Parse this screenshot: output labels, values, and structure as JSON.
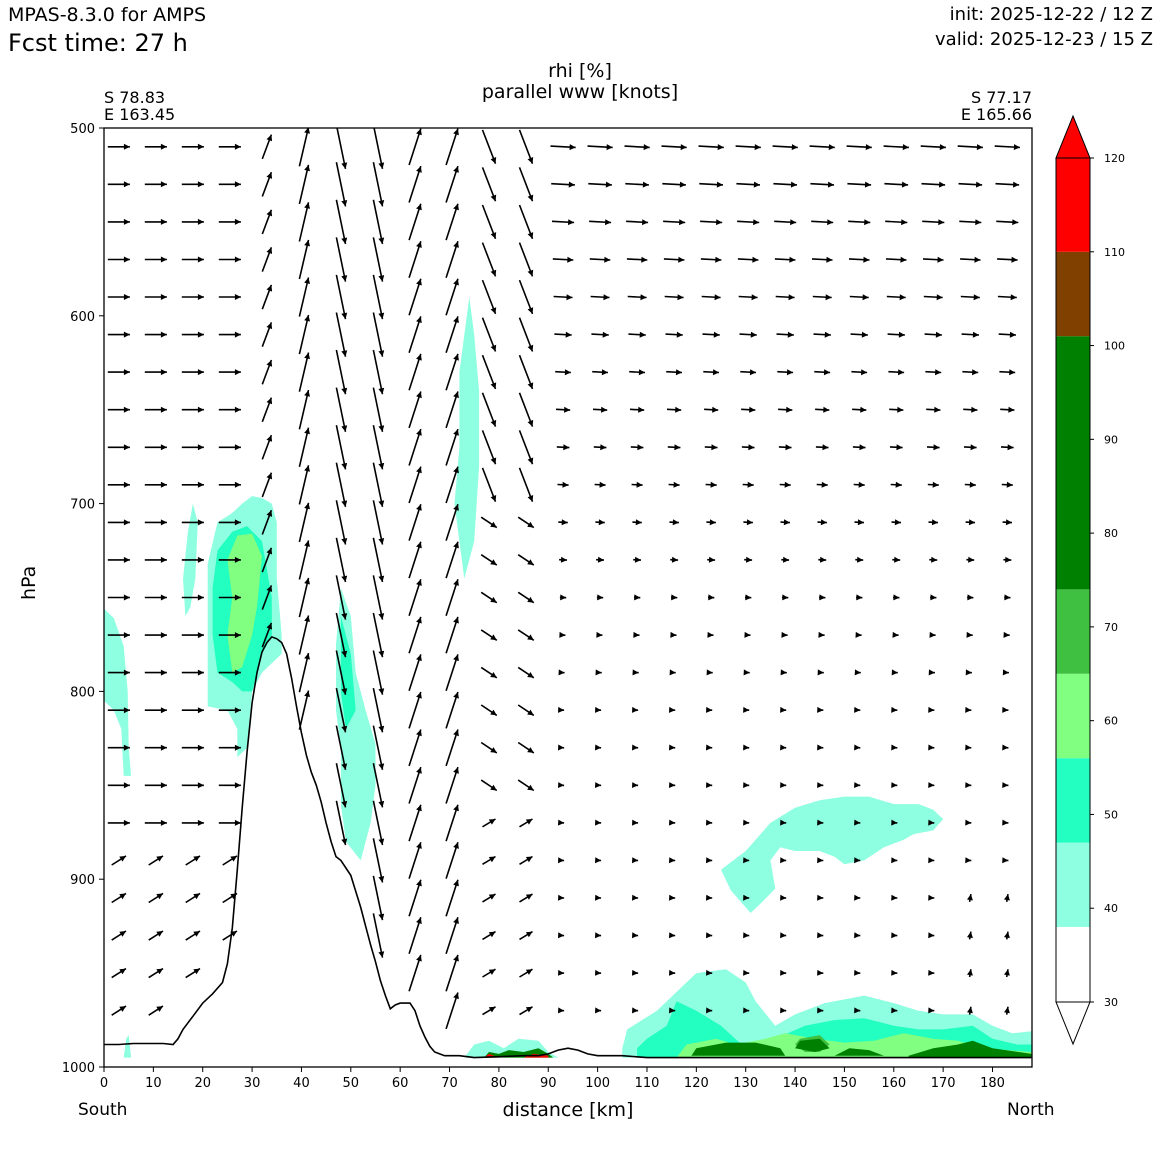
{
  "header": {
    "model": "MPAS-8.3.0 for AMPS",
    "forecast_time": "Fcst time:   27 h",
    "init": "init: 2025-12-22 / 12 Z",
    "valid": "valid: 2025-12-23 / 15 Z"
  },
  "chart_data": {
    "type": "cross-section",
    "title": "rhi [%]",
    "subtitle": "parallel www [knots]",
    "xlabel": "distance [km]",
    "ylabel": "hPa",
    "xlim": [
      0,
      188
    ],
    "ylim": [
      1000,
      500
    ],
    "x_ticks": [
      0,
      10,
      20,
      30,
      40,
      50,
      60,
      70,
      80,
      90,
      100,
      110,
      120,
      130,
      140,
      150,
      160,
      170,
      180
    ],
    "y_ticks": [
      500,
      600,
      700,
      800,
      900,
      1000
    ],
    "start_point": {
      "lat": "S 78.83",
      "lon": "E 163.45"
    },
    "end_point": {
      "lat": "S 77.17",
      "lon": "E 165.66"
    },
    "direction_labels": {
      "left": "South",
      "right": "North"
    },
    "colorbar": {
      "levels": [
        30,
        40,
        50,
        60,
        70,
        80,
        90,
        100,
        110,
        120
      ],
      "tick_labels": [
        "30",
        "40",
        "50",
        "60",
        "70",
        "80",
        "90",
        "100",
        "110",
        "120"
      ],
      "bins": [
        {
          "from": 30,
          "to": 38,
          "color": "#ffffff"
        },
        {
          "from": 38,
          "to": 47,
          "color": "#8effe0"
        },
        {
          "from": 47,
          "to": 56,
          "color": "#22ffc0"
        },
        {
          "from": 56,
          "to": 65,
          "color": "#80ff80"
        },
        {
          "from": 65,
          "to": 74,
          "color": "#40c040"
        },
        {
          "from": 74,
          "to": 101,
          "color": "#008000"
        },
        {
          "from": 101,
          "to": 110,
          "color": "#804000"
        },
        {
          "from": 110,
          "to": 120,
          "color": "#ff0000"
        }
      ],
      "extend": "both"
    },
    "terrain": {
      "x": [
        0,
        3,
        6,
        9,
        12,
        14,
        15,
        16,
        18,
        20,
        22,
        24,
        25,
        26,
        27,
        28,
        29,
        30,
        31,
        32,
        33,
        34,
        35,
        36,
        37,
        38,
        39,
        40,
        41,
        42,
        43,
        44,
        45,
        46,
        47,
        48,
        50,
        52,
        53,
        54,
        55,
        56,
        57,
        58,
        59,
        60,
        61,
        62,
        63,
        64,
        65,
        66,
        67,
        68,
        69,
        70,
        72,
        75,
        80,
        85,
        88,
        90,
        92,
        94,
        96,
        98,
        100,
        105,
        110,
        120,
        140,
        160,
        180,
        188
      ],
      "p": [
        988,
        988,
        987.5,
        987.5,
        987.5,
        988,
        985,
        980,
        973,
        966,
        961,
        955,
        945,
        926,
        895,
        862,
        832,
        806,
        790,
        779,
        774,
        771,
        772,
        774,
        780,
        793,
        808,
        822,
        834,
        843,
        850,
        859,
        870,
        880,
        888,
        890,
        898,
        915,
        925,
        935,
        944,
        954,
        962,
        969,
        967,
        966,
        966,
        966,
        970,
        978,
        984,
        989,
        992,
        993,
        994,
        994,
        994,
        995,
        994.5,
        994,
        994,
        993,
        991,
        990,
        991,
        993,
        994,
        994,
        995,
        995,
        995,
        995,
        995,
        995
      ]
    },
    "rh_regions": [
      {
        "level": 40,
        "points": [
          [
            0,
            756
          ],
          [
            2,
            761
          ],
          [
            4,
            776
          ],
          [
            4.8,
            800
          ],
          [
            5,
            830
          ],
          [
            5.5,
            845
          ],
          [
            4,
            845
          ],
          [
            3.5,
            820
          ],
          [
            2,
            810
          ],
          [
            0,
            805
          ]
        ]
      },
      {
        "level": 40,
        "points": [
          [
            16,
            740
          ],
          [
            17,
            715
          ],
          [
            18,
            700
          ],
          [
            19,
            710
          ],
          [
            18.5,
            740
          ],
          [
            17.5,
            755
          ],
          [
            16.5,
            760
          ]
        ]
      },
      {
        "level": 40,
        "points": [
          [
            21,
            732
          ],
          [
            23,
            710
          ],
          [
            26,
            705
          ],
          [
            28,
            700
          ],
          [
            30,
            696
          ],
          [
            32,
            697
          ],
          [
            34,
            700
          ],
          [
            35,
            710
          ],
          [
            35,
            740
          ],
          [
            36,
            770
          ],
          [
            36,
            780
          ],
          [
            32,
            790
          ],
          [
            30,
            800
          ],
          [
            29,
            830
          ],
          [
            27,
            835
          ],
          [
            27,
            820
          ],
          [
            25,
            810
          ],
          [
            21,
            808
          ]
        ]
      },
      {
        "level": 40,
        "points": [
          [
            48,
            745
          ],
          [
            50,
            760
          ],
          [
            51,
            790
          ],
          [
            53,
            810
          ],
          [
            55,
            828
          ],
          [
            55,
            850
          ],
          [
            54,
            870
          ],
          [
            52,
            890
          ],
          [
            49,
            880
          ],
          [
            48,
            860
          ],
          [
            48,
            830
          ],
          [
            47,
            810
          ],
          [
            47,
            775
          ]
        ]
      },
      {
        "level": 40,
        "points": [
          [
            74,
            590
          ],
          [
            75,
            610
          ],
          [
            76,
            640
          ],
          [
            76,
            680
          ],
          [
            75,
            720
          ],
          [
            73,
            740
          ],
          [
            72,
            720
          ],
          [
            71,
            700
          ],
          [
            72,
            670
          ],
          [
            72,
            630
          ]
        ]
      },
      {
        "level": 40,
        "points": [
          [
            125,
            895
          ],
          [
            130,
            885
          ],
          [
            135,
            870
          ],
          [
            140,
            862
          ],
          [
            145,
            858
          ],
          [
            150,
            856
          ],
          [
            155,
            856
          ],
          [
            160,
            860
          ],
          [
            165,
            860
          ],
          [
            168,
            863
          ],
          [
            170,
            868
          ],
          [
            168,
            874
          ],
          [
            164,
            876
          ],
          [
            162,
            879
          ],
          [
            158,
            883
          ],
          [
            154,
            890
          ],
          [
            150,
            892
          ],
          [
            148,
            888
          ],
          [
            145,
            885
          ],
          [
            140,
            885
          ],
          [
            137,
            883
          ],
          [
            135,
            890
          ],
          [
            136,
            905
          ],
          [
            133,
            913
          ],
          [
            131,
            918
          ],
          [
            129,
            912
          ],
          [
            127,
            906
          ]
        ]
      },
      {
        "level": 40,
        "points": [
          [
            105,
            990
          ],
          [
            106,
            980
          ],
          [
            112,
            970
          ],
          [
            116,
            960
          ],
          [
            120,
            950
          ],
          [
            126,
            948
          ],
          [
            130,
            955
          ],
          [
            132,
            965
          ],
          [
            136,
            978
          ],
          [
            140,
            972
          ],
          [
            146,
            966
          ],
          [
            154,
            962
          ],
          [
            160,
            966
          ],
          [
            165,
            970
          ],
          [
            170,
            972
          ],
          [
            176,
            972
          ],
          [
            180,
            978
          ],
          [
            184,
            982
          ],
          [
            188,
            981
          ],
          [
            188,
            995
          ],
          [
            105,
            995
          ]
        ]
      },
      {
        "level": 40,
        "points": [
          [
            4,
            995
          ],
          [
            4.5,
            985
          ],
          [
            5,
            983
          ],
          [
            5.5,
            995
          ]
        ]
      },
      {
        "level": 40,
        "points": [
          [
            73,
            995
          ],
          [
            75,
            988
          ],
          [
            78,
            986
          ],
          [
            81,
            990
          ],
          [
            84,
            985
          ],
          [
            88,
            986
          ],
          [
            90,
            992
          ],
          [
            92,
            995
          ]
        ]
      },
      {
        "level": 50,
        "points": [
          [
            22,
            745
          ],
          [
            23,
            725
          ],
          [
            26,
            715
          ],
          [
            29,
            712
          ],
          [
            32,
            720
          ],
          [
            34,
            750
          ],
          [
            34,
            770
          ],
          [
            32,
            780
          ],
          [
            30,
            800
          ],
          [
            28,
            800
          ],
          [
            26,
            795
          ],
          [
            23,
            790
          ],
          [
            22,
            770
          ]
        ]
      },
      {
        "level": 50,
        "points": [
          [
            108,
            990
          ],
          [
            110,
            985
          ],
          [
            114,
            978
          ],
          [
            116,
            965
          ],
          [
            120,
            970
          ],
          [
            125,
            978
          ],
          [
            130,
            990
          ],
          [
            136,
            985
          ],
          [
            142,
            978
          ],
          [
            148,
            975
          ],
          [
            154,
            974
          ],
          [
            160,
            978
          ],
          [
            165,
            980
          ],
          [
            170,
            980
          ],
          [
            176,
            978
          ],
          [
            180,
            985
          ],
          [
            185,
            988
          ],
          [
            188,
            988
          ],
          [
            188,
            995
          ],
          [
            108,
            995
          ]
        ]
      },
      {
        "level": 50,
        "points": [
          [
            48,
            760
          ],
          [
            50,
            780
          ],
          [
            51,
            810
          ],
          [
            49,
            820
          ],
          [
            48,
            800
          ]
        ]
      },
      {
        "level": 60,
        "points": [
          [
            25,
            730
          ],
          [
            27,
            717
          ],
          [
            30,
            716
          ],
          [
            32,
            728
          ],
          [
            31,
            755
          ],
          [
            30,
            770
          ],
          [
            28,
            787
          ],
          [
            26,
            790
          ],
          [
            25,
            770
          ],
          [
            26,
            750
          ]
        ]
      },
      {
        "level": 60,
        "points": [
          [
            116,
            995
          ],
          [
            118,
            988
          ],
          [
            124,
            985
          ],
          [
            128,
            988
          ],
          [
            134,
            985
          ],
          [
            138,
            982
          ],
          [
            144,
            985
          ],
          [
            150,
            987
          ],
          [
            156,
            986
          ],
          [
            162,
            982
          ],
          [
            168,
            985
          ],
          [
            173,
            986
          ],
          [
            178,
            990
          ],
          [
            188,
            992
          ],
          [
            188,
            995
          ],
          [
            116,
            995
          ]
        ]
      },
      {
        "level": 70,
        "points": [
          [
            140,
            988
          ],
          [
            141,
            985
          ],
          [
            145,
            983
          ],
          [
            147,
            988
          ],
          [
            145,
            992
          ],
          [
            142,
            992
          ]
        ]
      },
      {
        "level": 80,
        "points": [
          [
            119,
            994
          ],
          [
            120,
            990
          ],
          [
            126,
            987
          ],
          [
            132,
            987
          ],
          [
            137,
            990
          ],
          [
            138,
            994
          ]
        ]
      },
      {
        "level": 80,
        "points": [
          [
            140,
            990
          ],
          [
            141,
            986
          ],
          [
            145,
            985
          ],
          [
            147,
            990
          ],
          [
            144,
            992
          ]
        ]
      },
      {
        "level": 80,
        "points": [
          [
            148,
            994
          ],
          [
            151,
            990
          ],
          [
            155,
            991
          ],
          [
            158,
            994
          ]
        ]
      },
      {
        "level": 80,
        "points": [
          [
            163,
            994
          ],
          [
            168,
            990
          ],
          [
            173,
            988
          ],
          [
            176,
            986
          ],
          [
            180,
            990
          ],
          [
            188,
            993
          ],
          [
            188,
            995
          ],
          [
            163,
            995
          ]
        ]
      },
      {
        "level": 80,
        "points": [
          [
            77,
            995
          ],
          [
            78,
            992
          ],
          [
            80,
            993
          ],
          [
            82,
            991
          ],
          [
            85,
            992
          ],
          [
            88,
            990
          ],
          [
            90,
            993
          ],
          [
            91,
            995
          ]
        ]
      },
      {
        "level": 110,
        "points": [
          [
            77,
            995
          ],
          [
            78,
            993
          ],
          [
            80,
            995
          ]
        ]
      },
      {
        "level": 110,
        "points": [
          [
            85,
            995
          ],
          [
            87,
            993
          ],
          [
            90,
            994
          ],
          [
            90,
            995
          ]
        ]
      }
    ]
  }
}
